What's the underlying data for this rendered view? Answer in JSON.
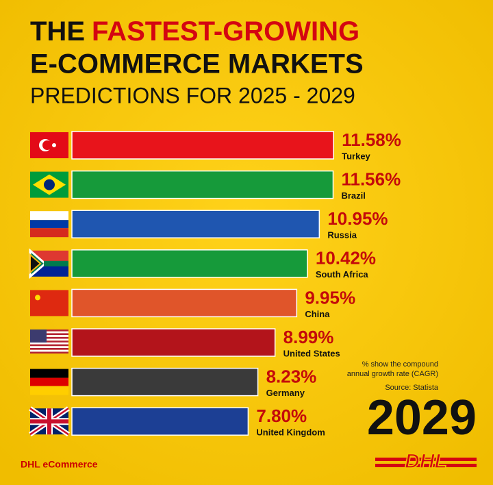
{
  "chart_data": {
    "type": "bar",
    "orientation": "horizontal",
    "title_lead": "THE",
    "title_highlight": "FASTEST-GROWING",
    "title_line2": "E-COMMERCE MARKETS",
    "subtitle": "PREDICTIONS FOR 2025 - 2029",
    "categories": [
      "Turkey",
      "Brazil",
      "Russia",
      "South Africa",
      "China",
      "United States",
      "Germany",
      "United Kingdom"
    ],
    "values": [
      11.58,
      11.56,
      10.95,
      10.42,
      9.95,
      8.99,
      8.23,
      7.8
    ],
    "value_labels": [
      "11.58%",
      "11.56%",
      "10.95%",
      "10.42%",
      "9.95%",
      "8.99%",
      "8.23%",
      "7.80%"
    ],
    "colors": [
      "#e8141b",
      "#169a3a",
      "#1f56b0",
      "#169a3a",
      "#e0552a",
      "#b3141b",
      "#3a3a3a",
      "#1c3f94"
    ],
    "note_line1": "% show the compound",
    "note_line2": "annual growth rate (CAGR)",
    "source": "Source: Statista",
    "year": "2029",
    "footer": "DHL eCommerce",
    "logo": "DHL"
  }
}
